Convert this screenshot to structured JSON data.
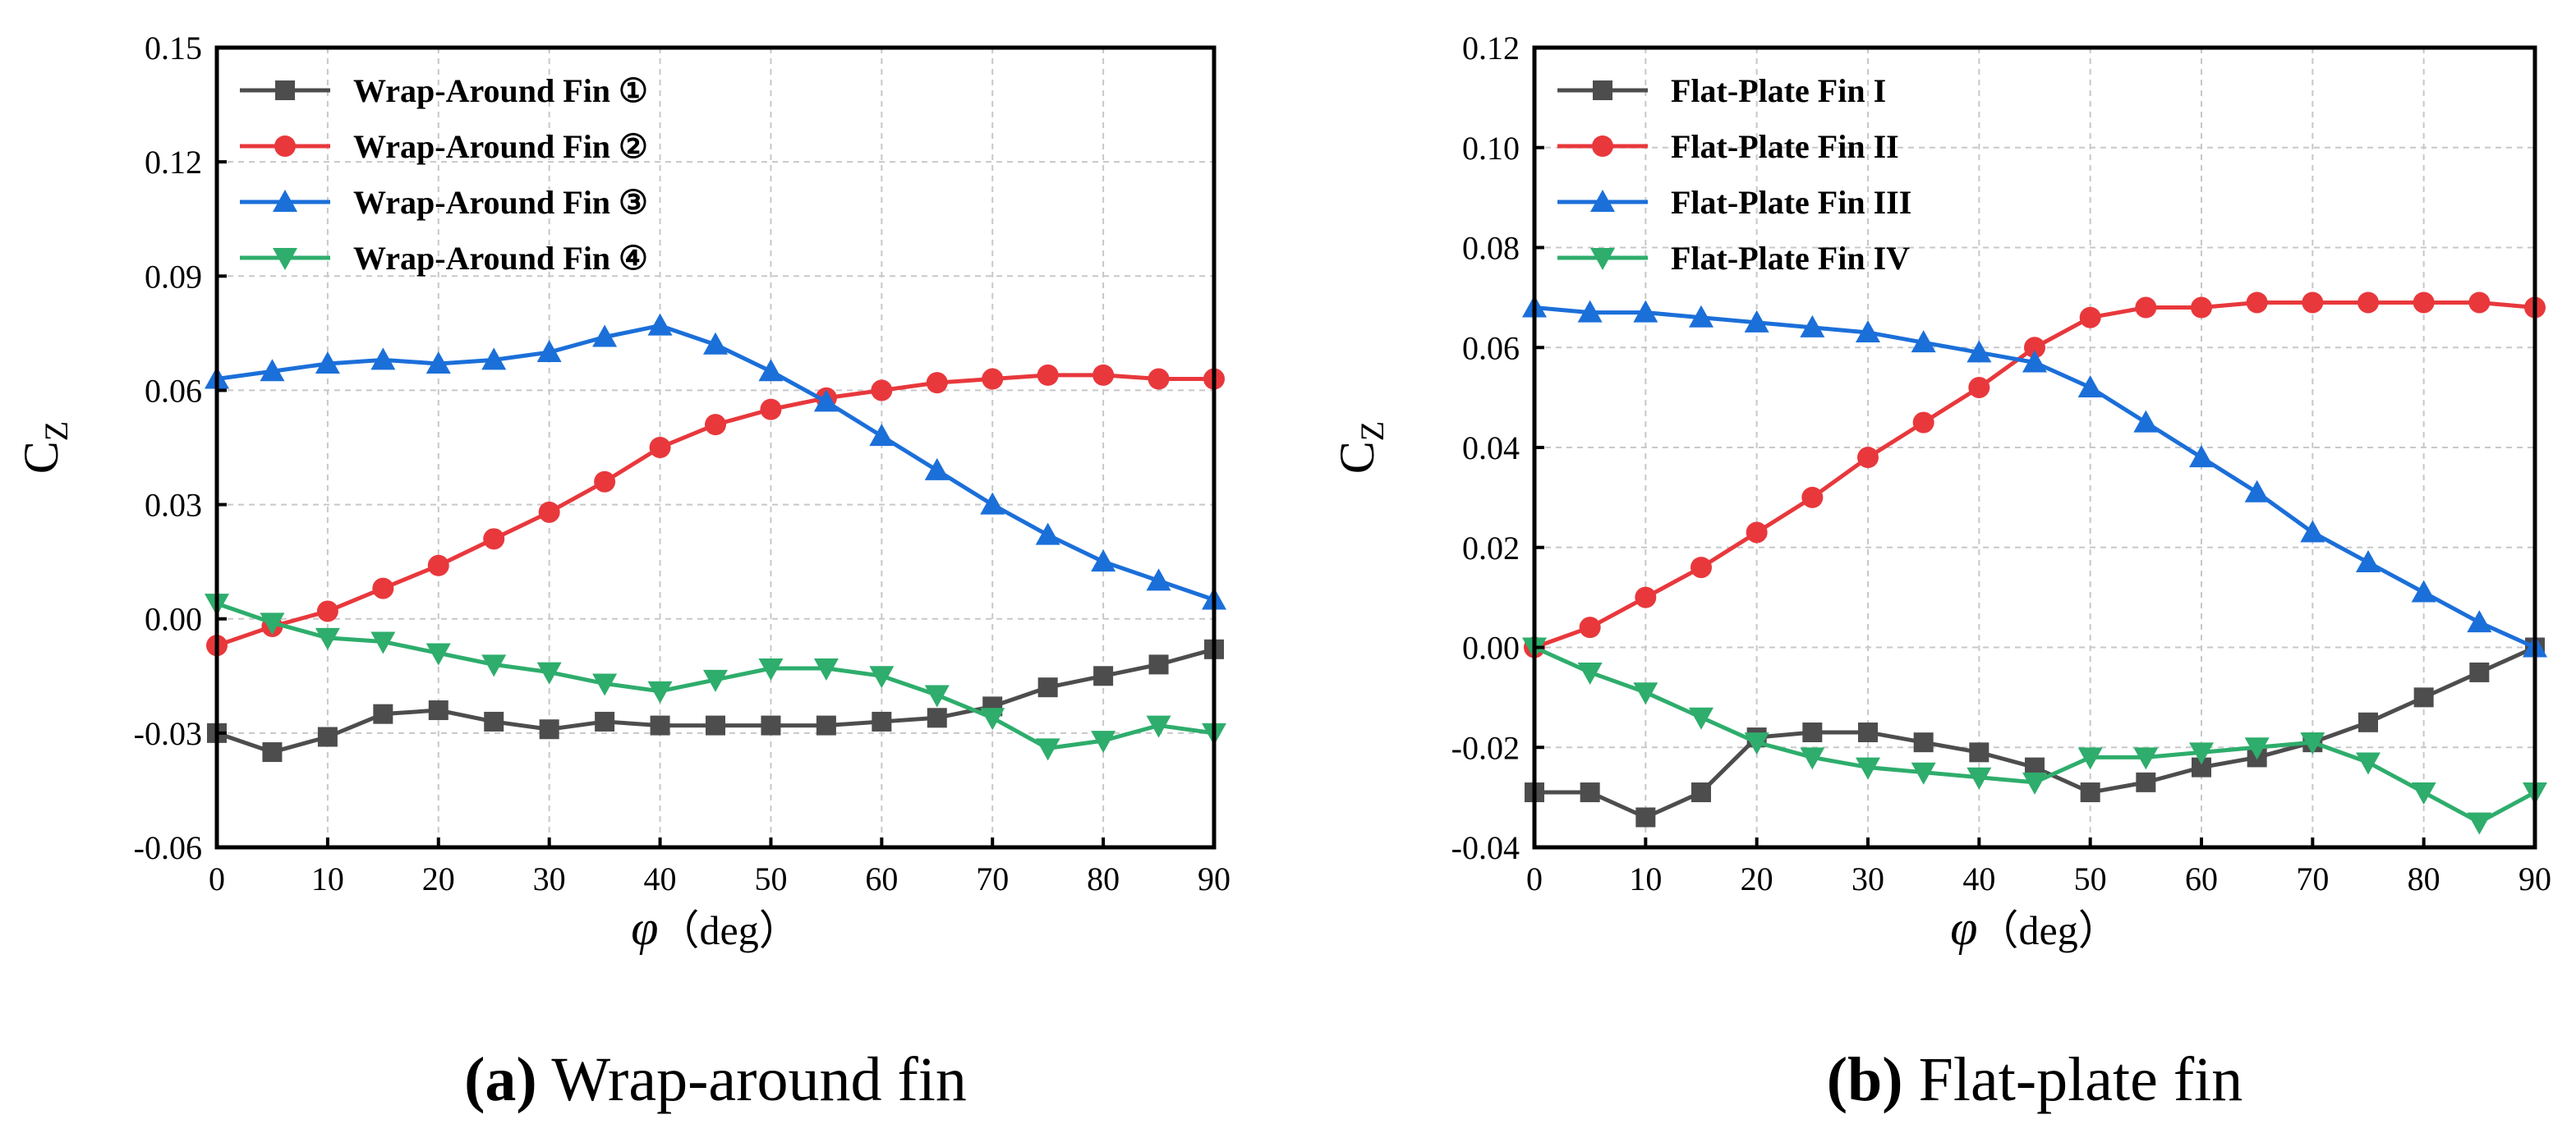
{
  "chart_data": [
    {
      "type": "line",
      "caption_letter": "(a)",
      "caption_text": "Wrap-around fin",
      "xlabel_symbol": "φ",
      "xlabel_unit": "（deg）",
      "ylabel": "C",
      "ylabel_sub": "Z",
      "xlim": [
        0,
        90
      ],
      "ylim": [
        -0.06,
        0.15
      ],
      "xticks": [
        0,
        10,
        20,
        30,
        40,
        50,
        60,
        70,
        80,
        90
      ],
      "yticks": [
        "-0.06",
        "-0.03",
        "0.00",
        "0.03",
        "0.06",
        "0.09",
        "0.12",
        "0.15"
      ],
      "grid": true,
      "legend_position": "top-left",
      "x": [
        0,
        5,
        10,
        15,
        20,
        25,
        30,
        35,
        40,
        45,
        50,
        55,
        60,
        65,
        70,
        75,
        80,
        85,
        90
      ],
      "series": [
        {
          "name": "Wrap-Around Fin ①",
          "color": "#4d4d4d",
          "marker": "square",
          "values": [
            -0.03,
            -0.035,
            -0.031,
            -0.025,
            -0.024,
            -0.027,
            -0.029,
            -0.027,
            -0.028,
            -0.028,
            -0.028,
            -0.028,
            -0.027,
            -0.026,
            -0.023,
            -0.018,
            -0.015,
            -0.012,
            -0.008
          ]
        },
        {
          "name": "Wrap-Around Fin ②",
          "color": "#e8383c",
          "marker": "circle",
          "values": [
            -0.007,
            -0.002,
            0.002,
            0.008,
            0.014,
            0.021,
            0.028,
            0.036,
            0.045,
            0.051,
            0.055,
            0.058,
            0.06,
            0.062,
            0.063,
            0.064,
            0.064,
            0.063,
            0.063
          ]
        },
        {
          "name": "Wrap-Around Fin ③",
          "color": "#1b6fd9",
          "marker": "triangle-up",
          "values": [
            0.063,
            0.065,
            0.067,
            0.068,
            0.067,
            0.068,
            0.07,
            0.074,
            0.077,
            0.072,
            0.065,
            0.057,
            0.048,
            0.039,
            0.03,
            0.022,
            0.015,
            0.01,
            0.005
          ]
        },
        {
          "name": "Wrap-Around Fin ④",
          "color": "#2ead6c",
          "marker": "triangle-down",
          "values": [
            0.004,
            -0.001,
            -0.005,
            -0.006,
            -0.009,
            -0.012,
            -0.014,
            -0.017,
            -0.019,
            -0.016,
            -0.013,
            -0.013,
            -0.015,
            -0.02,
            -0.026,
            -0.034,
            -0.032,
            -0.028,
            -0.03
          ]
        }
      ]
    },
    {
      "type": "line",
      "caption_letter": "(b)",
      "caption_text": "Flat-plate fin",
      "xlabel_symbol": "φ",
      "xlabel_unit": "（deg）",
      "ylabel": "C",
      "ylabel_sub": "Z",
      "xlim": [
        0,
        90
      ],
      "ylim": [
        -0.04,
        0.12
      ],
      "xticks": [
        0,
        10,
        20,
        30,
        40,
        50,
        60,
        70,
        80,
        90
      ],
      "yticks": [
        "-0.04",
        "-0.02",
        "0.00",
        "0.02",
        "0.04",
        "0.06",
        "0.08",
        "0.10",
        "0.12"
      ],
      "grid": true,
      "legend_position": "top-left",
      "x": [
        0,
        5,
        10,
        15,
        20,
        25,
        30,
        35,
        40,
        45,
        50,
        55,
        60,
        65,
        70,
        75,
        80,
        85,
        90
      ],
      "series": [
        {
          "name": "Flat-Plate Fin I",
          "color": "#4d4d4d",
          "marker": "square",
          "values": [
            -0.029,
            -0.029,
            -0.034,
            -0.029,
            -0.018,
            -0.017,
            -0.017,
            -0.019,
            -0.021,
            -0.024,
            -0.029,
            -0.027,
            -0.024,
            -0.022,
            -0.019,
            -0.015,
            -0.01,
            -0.005,
            0.0
          ]
        },
        {
          "name": "Flat-Plate Fin II",
          "color": "#e8383c",
          "marker": "circle",
          "values": [
            0.0,
            0.004,
            0.01,
            0.016,
            0.023,
            0.03,
            0.038,
            0.045,
            0.052,
            0.06,
            0.066,
            0.068,
            0.068,
            0.069,
            0.069,
            0.069,
            0.069,
            0.069,
            0.068
          ]
        },
        {
          "name": "Flat-Plate Fin III",
          "color": "#1b6fd9",
          "marker": "triangle-up",
          "values": [
            0.068,
            0.067,
            0.067,
            0.066,
            0.065,
            0.064,
            0.063,
            0.061,
            0.059,
            0.057,
            0.052,
            0.045,
            0.038,
            0.031,
            0.023,
            0.017,
            0.011,
            0.005,
            0.0
          ]
        },
        {
          "name": "Flat-Plate Fin IV",
          "color": "#2ead6c",
          "marker": "triangle-down",
          "values": [
            0.0,
            -0.005,
            -0.009,
            -0.014,
            -0.019,
            -0.022,
            -0.024,
            -0.025,
            -0.026,
            -0.027,
            -0.022,
            -0.022,
            -0.021,
            -0.02,
            -0.019,
            -0.023,
            -0.029,
            -0.035,
            -0.029
          ]
        }
      ]
    }
  ]
}
